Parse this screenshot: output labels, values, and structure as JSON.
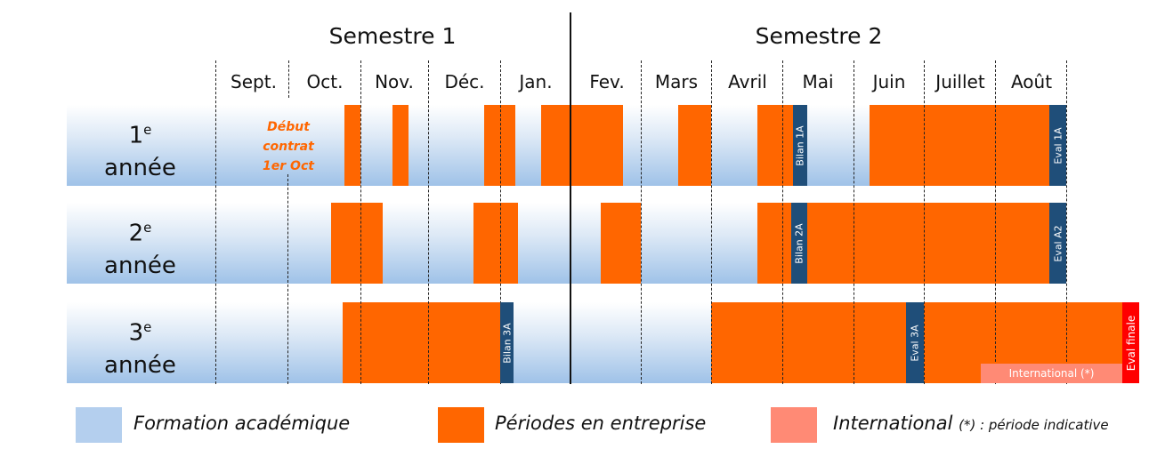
{
  "semesters": [
    "Semestre 1",
    "Semestre 2"
  ],
  "months": [
    "Sept.",
    "Oct.",
    "Nov.",
    "Déc.",
    "Jan.",
    "Fev.",
    "Mars",
    "Avril",
    "Mai",
    "Juin",
    "Juillet",
    "Août"
  ],
  "rows": [
    {
      "num": "1",
      "sup": "e",
      "label": "année"
    },
    {
      "num": "2",
      "sup": "e",
      "label": "année"
    },
    {
      "num": "3",
      "sup": "e",
      "label": "année"
    }
  ],
  "annotation": [
    "Début",
    "contrat",
    "1er Oct"
  ],
  "milestones": {
    "bilan1": "Bilan 1A",
    "eval1": "Eval 1A",
    "bilan2": "Bilan 2A",
    "eval2": "Eval A2",
    "bilan3": "Bilan 3A",
    "eval3": "Eval 3A",
    "final": "Eval finale"
  },
  "international_bar": "International (*)",
  "legend": {
    "academic": "Formation académique",
    "company": "Périodes en entreprise",
    "international": "International",
    "international_note": "(*) : période indicative"
  },
  "colors": {
    "academic": "#b4cfee",
    "company": "#ff6600",
    "international": "#ff8a75",
    "milestone": "#1f4e79",
    "final": "#ff0000"
  }
}
